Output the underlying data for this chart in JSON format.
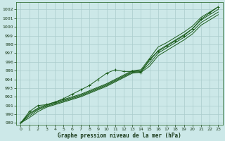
{
  "title": "Graphe pression niveau de la mer (hPa)",
  "bg_color": "#cce8e8",
  "grid_color": "#aacccc",
  "line_color": "#1a5c1a",
  "xlim": [
    -0.5,
    23.5
  ],
  "ylim": [
    988.8,
    1002.8
  ],
  "yticks": [
    989,
    990,
    991,
    992,
    993,
    994,
    995,
    996,
    997,
    998,
    999,
    1000,
    1001,
    1002
  ],
  "xticks": [
    0,
    1,
    2,
    3,
    4,
    5,
    6,
    7,
    8,
    9,
    10,
    11,
    12,
    13,
    14,
    15,
    16,
    17,
    18,
    19,
    20,
    21,
    22,
    23
  ],
  "s1": [
    989.0,
    990.1,
    990.7,
    991.1,
    991.4,
    991.7,
    992.0,
    992.3,
    992.7,
    993.1,
    993.5,
    994.0,
    994.5,
    995.0,
    995.1,
    996.4,
    997.7,
    998.2,
    998.8,
    999.4,
    1000.1,
    1001.1,
    1001.7,
    1002.3
  ],
  "s2": [
    989.0,
    990.0,
    990.6,
    991.0,
    991.3,
    991.6,
    991.9,
    992.2,
    992.6,
    993.0,
    993.4,
    993.9,
    994.4,
    994.9,
    995.0,
    996.1,
    997.3,
    997.9,
    998.5,
    999.1,
    999.8,
    1000.8,
    1001.4,
    1002.0
  ],
  "s3": [
    989.0,
    989.8,
    990.5,
    990.9,
    991.2,
    991.5,
    991.8,
    992.1,
    992.5,
    992.9,
    993.3,
    993.8,
    994.3,
    994.8,
    994.9,
    995.8,
    997.0,
    997.6,
    998.2,
    998.8,
    999.5,
    1000.5,
    1001.1,
    1001.7
  ],
  "s4": [
    989.0,
    989.6,
    990.3,
    990.8,
    991.1,
    991.4,
    991.7,
    992.0,
    992.4,
    992.8,
    993.2,
    993.7,
    994.2,
    994.7,
    994.8,
    995.5,
    996.7,
    997.3,
    997.9,
    998.5,
    999.2,
    1000.2,
    1000.8,
    1001.4
  ],
  "sm": [
    989.0,
    990.3,
    991.0,
    991.1,
    991.4,
    991.8,
    992.3,
    992.8,
    993.3,
    994.0,
    994.7,
    995.1,
    994.9,
    994.9,
    994.8,
    996.3,
    997.2,
    997.8,
    998.4,
    999.0,
    999.8,
    1000.9,
    1001.6,
    1002.3
  ],
  "title_fontsize": 5.5,
  "tick_fontsize": 4.5
}
